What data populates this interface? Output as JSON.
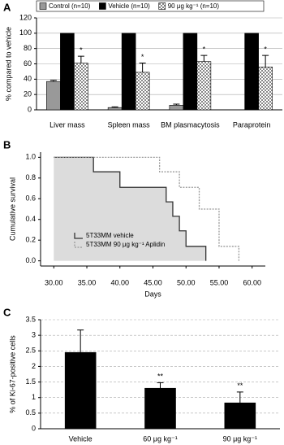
{
  "chart_data": [
    {
      "type": "bar",
      "label": "A",
      "ylabel": "% compared to vehicle",
      "categories": [
        "Liver mass",
        "Spleen mass",
        "BM plasmacytosis",
        "Paraprotein"
      ],
      "series": [
        {
          "name": "Control (n=10)",
          "color": "#999999",
          "values": [
            37,
            3,
            6,
            null
          ],
          "errors": [
            1.5,
            0.8,
            1.5,
            null
          ]
        },
        {
          "name": "Vehicle (n=10)",
          "color": "#000000",
          "values": [
            100,
            100,
            100,
            100
          ]
        },
        {
          "name": "90 μg kg⁻¹ (n=10)",
          "color": "#ffffff",
          "hatch": "checker",
          "values": [
            61,
            49,
            63,
            56
          ],
          "errors": [
            9,
            12,
            8,
            15
          ],
          "annotations": [
            "*",
            "*",
            "*",
            "*"
          ]
        }
      ],
      "ylim": [
        0,
        120
      ],
      "yticks": [
        0,
        20,
        40,
        60,
        80,
        100,
        120
      ],
      "grid": true
    },
    {
      "type": "line",
      "step": true,
      "label": "B",
      "xlabel": "Days",
      "ylabel": "Cumulative survival",
      "series": [
        {
          "name": "5T33MM vehicle",
          "color": "#333333",
          "fill": "#dcdcdc",
          "x": [
            30,
            36,
            40,
            47,
            48,
            49,
            50,
            53
          ],
          "values": [
            1.0,
            0.86,
            0.71,
            0.57,
            0.43,
            0.29,
            0.14,
            0.0
          ]
        },
        {
          "name": "5T33MM 90 μg kg⁻¹ Aplidin",
          "color": "#999999",
          "dash": true,
          "x": [
            30,
            46,
            49,
            52,
            55,
            58
          ],
          "values": [
            1.0,
            0.86,
            0.71,
            0.5,
            0.14,
            0.0
          ]
        }
      ],
      "xlim": [
        28,
        62
      ],
      "xticks": [
        {
          "value": 30,
          "label": "30.00"
        },
        {
          "value": 35,
          "label": "35.00"
        },
        {
          "value": 40,
          "label": "40.00"
        },
        {
          "value": 45,
          "label": "45.00"
        },
        {
          "value": 50,
          "label": "50.00"
        },
        {
          "value": 55,
          "label": "55.00"
        },
        {
          "value": 60,
          "label": "60.00"
        }
      ],
      "ylim": [
        -0.05,
        1.05
      ],
      "yticks": [
        {
          "value": 0,
          "label": "0.0"
        },
        {
          "value": 0.2,
          "label": "0.2"
        },
        {
          "value": 0.4,
          "label": "0.4"
        },
        {
          "value": 0.6,
          "label": "0.6"
        },
        {
          "value": 0.8,
          "label": "0.8"
        },
        {
          "value": 1,
          "label": "1.0"
        }
      ],
      "grid": false
    },
    {
      "type": "bar",
      "label": "C",
      "ylabel": "% of Ki-67-positive cells",
      "categories": [
        "Vehicle",
        "60 μg kg⁻¹",
        "90 μg kg⁻¹"
      ],
      "series": [
        {
          "color": "#000000",
          "values": [
            2.45,
            1.3,
            0.83
          ],
          "errors": [
            0.72,
            0.18,
            0.35
          ],
          "annotations": [
            null,
            "**",
            "**"
          ]
        }
      ],
      "ylim": [
        0,
        3.5
      ],
      "yticks": [
        0,
        0.5,
        1,
        1.5,
        2,
        2.5,
        3,
        3.5
      ],
      "grid": true,
      "grid_style": "dashed"
    }
  ]
}
